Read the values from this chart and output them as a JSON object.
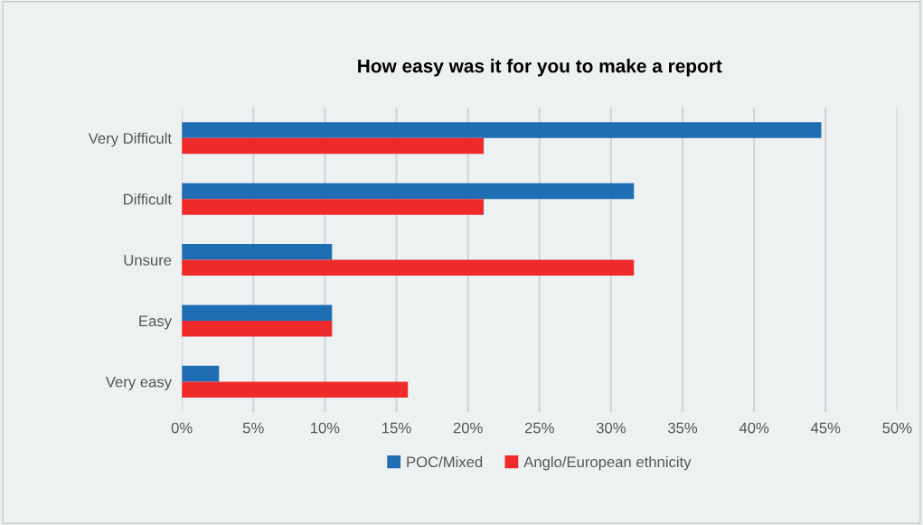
{
  "chart_data": {
    "type": "bar",
    "orientation": "horizontal",
    "title": "How easy was it for you to make a report",
    "categories": [
      "Very Difficult",
      "Difficult",
      "Unsure",
      "Easy",
      "Very easy"
    ],
    "series": [
      {
        "name": "POC/Mixed",
        "color": "#1f6db3",
        "values": [
          44.7,
          31.6,
          10.5,
          10.5,
          2.6
        ]
      },
      {
        "name": "Anglo/European ethnicity",
        "color": "#ee2a2a",
        "values": [
          21.1,
          21.1,
          31.6,
          10.5,
          15.8
        ]
      }
    ],
    "xlim": [
      0,
      50
    ],
    "xticks": [
      {
        "value": 0,
        "label": "0%"
      },
      {
        "value": 5,
        "label": "5%"
      },
      {
        "value": 10,
        "label": "10%"
      },
      {
        "value": 15,
        "label": "15%"
      },
      {
        "value": 20,
        "label": "20%"
      },
      {
        "value": 25,
        "label": "25%"
      },
      {
        "value": 30,
        "label": "30%"
      },
      {
        "value": 35,
        "label": "35%"
      },
      {
        "value": 40,
        "label": "40%"
      },
      {
        "value": 45,
        "label": "45%"
      },
      {
        "value": 50,
        "label": "50%"
      }
    ],
    "grid": "x",
    "legend": "bottom"
  }
}
